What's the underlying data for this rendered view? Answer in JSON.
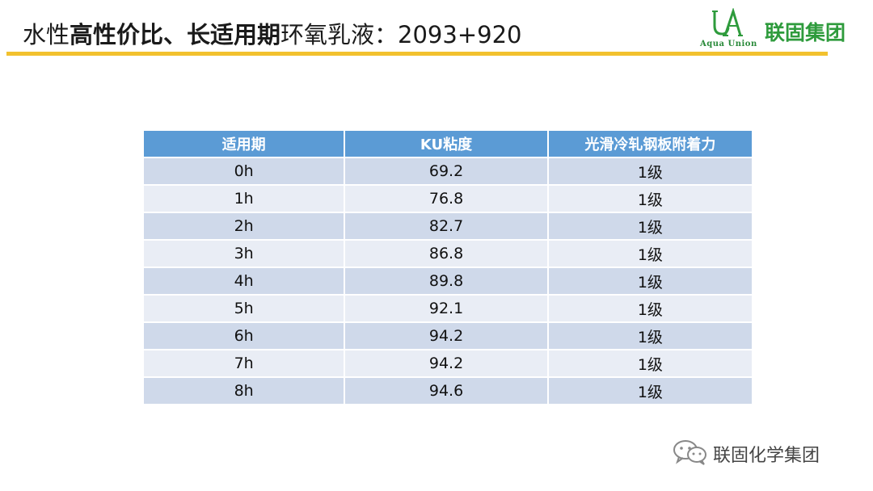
{
  "header": {
    "title_prefix": "水性",
    "title_bold": "高性价比、长适用期",
    "title_suffix": "环氧乳液：2093+920"
  },
  "logo": {
    "name": "联固集团",
    "sub": "Aqua Union",
    "brand_color": "#2e9b3c"
  },
  "table": {
    "columns": [
      "适用期",
      "KU粘度",
      "光滑冷轧钢板附着力"
    ],
    "rows": [
      [
        "0h",
        "69.2",
        "1级"
      ],
      [
        "1h",
        "76.8",
        "1级"
      ],
      [
        "2h",
        "82.7",
        "1级"
      ],
      [
        "3h",
        "86.8",
        "1级"
      ],
      [
        "4h",
        "89.8",
        "1级"
      ],
      [
        "5h",
        "92.1",
        "1级"
      ],
      [
        "6h",
        "94.2",
        "1级"
      ],
      [
        "7h",
        "94.2",
        "1级"
      ],
      [
        "8h",
        "94.6",
        "1级"
      ]
    ],
    "header_color": "#5b9bd5",
    "row_color_a": "#cfd9ea",
    "row_color_b": "#e9edf5"
  },
  "footer": {
    "icon": "wechat-icon",
    "text": "联固化学集团"
  },
  "accent": "#f2c12e"
}
